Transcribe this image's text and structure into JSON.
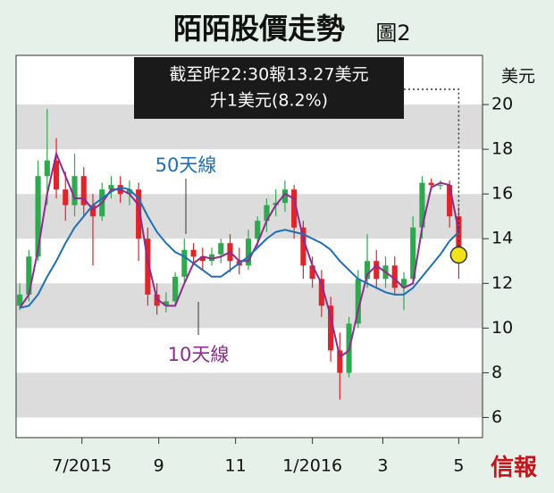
{
  "chart_data": {
    "type": "candlestick",
    "title": "陌陌股價走勢",
    "figure_label": "圖2",
    "y_unit": "美元",
    "source": "信報",
    "annotation": [
      "截至昨22:30報13.27美元",
      "升1美元(8.2%)"
    ],
    "ylim": [
      5.1,
      22.2
    ],
    "yticks": [
      6,
      8,
      10,
      12,
      14,
      16,
      18,
      20
    ],
    "banded_grid": true,
    "xlim": [
      -0.4,
      50.6
    ],
    "xticks": [
      {
        "value": 6.8,
        "label": "7/2015"
      },
      {
        "value": 15.2,
        "label": "9"
      },
      {
        "value": 23.6,
        "label": "11"
      },
      {
        "value": 32,
        "label": "1/2016"
      },
      {
        "value": 39.7,
        "label": "3"
      },
      {
        "value": 48,
        "label": "5"
      }
    ],
    "x": [
      0,
      1,
      2,
      3,
      4,
      5,
      6,
      7,
      8,
      9,
      10,
      11,
      12,
      13,
      14,
      15,
      16,
      17,
      18,
      19,
      20,
      21,
      22,
      23,
      24,
      25,
      26,
      27,
      28,
      29,
      30,
      31,
      32,
      33,
      34,
      35,
      36,
      37,
      38,
      39,
      40,
      41,
      42,
      43,
      44,
      45,
      46,
      47,
      48
    ],
    "open": [
      11.0,
      11.5,
      13.2,
      16.8,
      17.5,
      16.2,
      15.5,
      16.8,
      15.5,
      15.0,
      16.2,
      16.4,
      16.0,
      16.2,
      14.0,
      11.5,
      11.0,
      11.2,
      12.3,
      13.5,
      13.2,
      13.0,
      13.3,
      13.8,
      13.0,
      12.8,
      14.0,
      14.8,
      15.5,
      15.6,
      16.2,
      14.5,
      12.8,
      12.2,
      11.0,
      9.0,
      8.0,
      10.2,
      12.2,
      13.0,
      12.2,
      12.8,
      11.8,
      12.2,
      14.5,
      16.5,
      16.4,
      16.4,
      15.0
    ],
    "high": [
      12.0,
      13.5,
      17.5,
      19.8,
      18.5,
      17.0,
      17.8,
      17.2,
      16.0,
      16.5,
      16.8,
      16.8,
      16.6,
      16.5,
      14.5,
      12.0,
      11.6,
      12.5,
      14.0,
      13.8,
      13.6,
      13.6,
      14.0,
      14.2,
      13.6,
      14.4,
      15.0,
      15.8,
      16.2,
      16.6,
      16.4,
      14.8,
      13.2,
      12.6,
      11.4,
      9.8,
      10.5,
      12.6,
      14.2,
      13.5,
      13.2,
      13.2,
      12.5,
      15.0,
      16.8,
      16.7,
      16.6,
      16.6,
      15.4
    ],
    "low": [
      10.8,
      11.2,
      13.0,
      15.5,
      15.8,
      14.8,
      15.0,
      15.0,
      12.8,
      14.8,
      15.8,
      15.6,
      15.5,
      13.0,
      11.0,
      10.6,
      10.7,
      11.0,
      12.0,
      12.8,
      12.6,
      12.8,
      12.9,
      12.5,
      12.4,
      12.6,
      13.6,
      14.3,
      15.0,
      15.2,
      14.0,
      12.2,
      11.8,
      10.5,
      8.5,
      6.8,
      7.8,
      10.0,
      11.8,
      11.8,
      11.8,
      11.5,
      10.8,
      12.0,
      14.0,
      16.2,
      16.2,
      14.5,
      12.2
    ],
    "close": [
      11.5,
      13.2,
      16.8,
      17.5,
      16.2,
      15.5,
      16.8,
      15.5,
      15.0,
      16.2,
      16.4,
      16.0,
      16.2,
      14.0,
      11.5,
      11.0,
      11.2,
      12.3,
      13.5,
      13.2,
      13.0,
      13.3,
      13.8,
      13.0,
      12.8,
      14.0,
      14.8,
      15.5,
      15.6,
      16.2,
      14.5,
      12.8,
      12.2,
      11.0,
      9.0,
      8.0,
      10.2,
      12.2,
      13.0,
      12.2,
      12.8,
      11.8,
      12.2,
      14.5,
      16.5,
      16.4,
      16.4,
      15.0,
      13.27
    ],
    "up_color": "#2fa84f",
    "down_color": "#e0242a",
    "series": [
      {
        "name": "10天線",
        "color": "#8e2c8e",
        "values": [
          10.9,
          11.5,
          13.5,
          16.0,
          17.8,
          16.8,
          15.8,
          15.8,
          15.3,
          15.6,
          16.2,
          16.2,
          16.0,
          15.5,
          13.0,
          11.3,
          11.0,
          11.0,
          12.0,
          12.9,
          13.2,
          13.1,
          13.2,
          13.4,
          13.0,
          13.0,
          13.8,
          14.8,
          15.5,
          16.0,
          15.8,
          14.0,
          12.8,
          12.0,
          10.5,
          8.7,
          9.0,
          10.8,
          12.4,
          12.8,
          12.5,
          12.2,
          11.8,
          12.0,
          14.5,
          16.3,
          16.5,
          16.4,
          14.3
        ]
      },
      {
        "name": "50天線",
        "color": "#1f6fb5",
        "values": [
          10.9,
          11.0,
          11.5,
          12.3,
          13.0,
          13.8,
          14.5,
          15.0,
          15.5,
          15.8,
          16.1,
          16.3,
          16.2,
          15.8,
          15.0,
          14.3,
          13.8,
          13.4,
          13.2,
          12.9,
          12.6,
          12.3,
          12.3,
          12.6,
          12.9,
          13.2,
          13.6,
          14.0,
          14.3,
          14.4,
          14.3,
          14.2,
          14.0,
          13.8,
          13.5,
          13.0,
          12.6,
          12.2,
          12.0,
          11.8,
          11.6,
          11.5,
          11.5,
          11.8,
          12.3,
          12.8,
          13.3,
          13.9,
          14.3
        ]
      }
    ]
  }
}
